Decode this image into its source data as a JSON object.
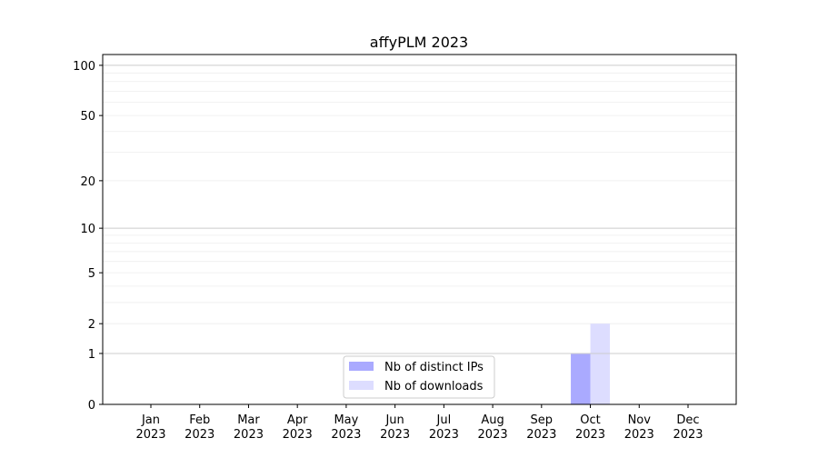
{
  "chart_data": {
    "type": "bar",
    "title": "affyPLM 2023",
    "xlabel": "",
    "ylabel": "",
    "y_scale": "log(1+y)",
    "ylim": [
      0,
      116
    ],
    "grid": true,
    "legend_placement": "lower-center",
    "categories": [
      "Jan\n2023",
      "Feb\n2023",
      "Mar\n2023",
      "Apr\n2023",
      "May\n2023",
      "Jun\n2023",
      "Jul\n2023",
      "Aug\n2023",
      "Sep\n2023",
      "Oct\n2023",
      "Nov\n2023",
      "Dec\n2023"
    ],
    "yticks": [
      0,
      1,
      2,
      5,
      10,
      20,
      50,
      100
    ],
    "ytick_labels": [
      "0",
      "1",
      "2",
      "5",
      "10",
      "20",
      "50",
      "100"
    ],
    "series": [
      {
        "name": "Nb of distinct IPs",
        "color": "#aaaaff",
        "values": [
          0,
          0,
          0,
          0,
          0,
          0,
          0,
          0,
          0,
          1,
          0,
          0
        ]
      },
      {
        "name": "Nb of downloads",
        "color": "#ddddff",
        "values": [
          0,
          0,
          0,
          0,
          0,
          0,
          0,
          0,
          0,
          2,
          0,
          0
        ]
      }
    ]
  }
}
